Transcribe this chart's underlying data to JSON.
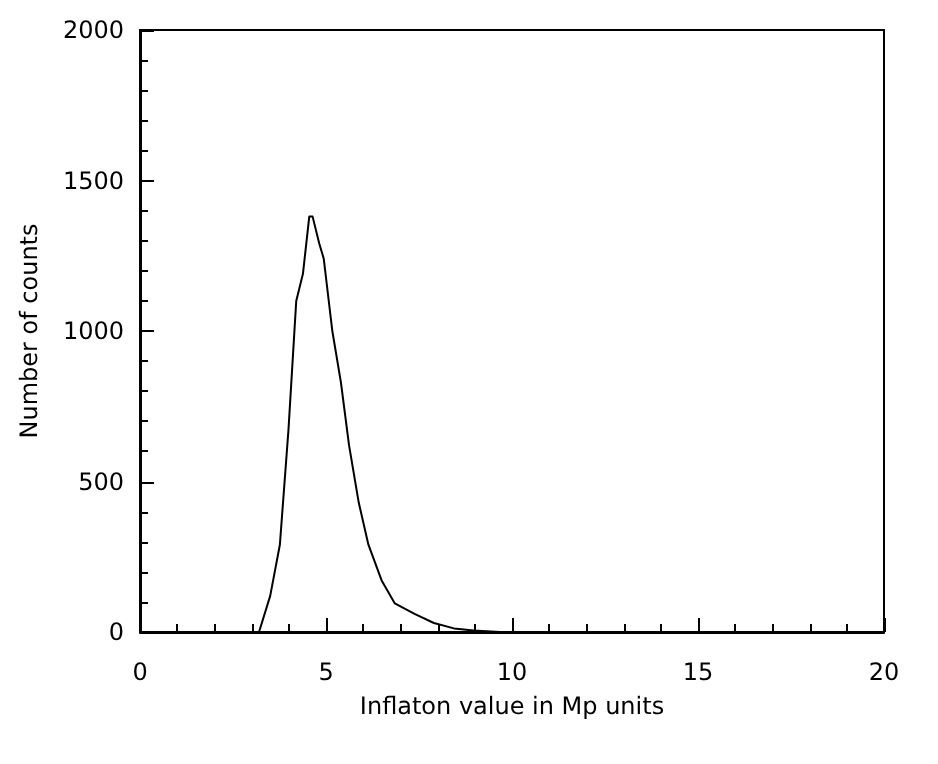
{
  "chart_data": {
    "type": "line",
    "xlabel": "Inflaton value in Mp units",
    "ylabel": "Number of counts",
    "xlim": [
      0,
      20
    ],
    "ylim": [
      0,
      2000
    ],
    "xticks": [
      0,
      5,
      10,
      15,
      20
    ],
    "yticks": [
      0,
      500,
      1000,
      1500,
      2000
    ],
    "grid": false,
    "marker": "none",
    "line_style": "solid",
    "series": [
      {
        "color": "#000000",
        "x": [
          3.2,
          3.5,
          3.76,
          3.99,
          4.2,
          4.38,
          4.55,
          4.64,
          4.82,
          4.94,
          5.17,
          5.4,
          5.62,
          5.88,
          6.14,
          6.5,
          6.85,
          7.38,
          7.9,
          8.44,
          8.97,
          9.67,
          10
        ],
        "values": [
          0,
          120,
          290,
          670,
          1100,
          1190,
          1380,
          1380,
          1290,
          1240,
          1000,
          830,
          620,
          430,
          290,
          170,
          95,
          60,
          30,
          12,
          5,
          0,
          0
        ]
      }
    ]
  }
}
